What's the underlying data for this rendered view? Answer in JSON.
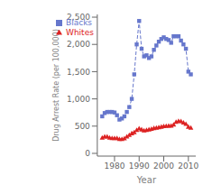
{
  "chart_data": {
    "type": "line",
    "x": [
      1975,
      1976,
      1977,
      1978,
      1979,
      1980,
      1981,
      1982,
      1983,
      1984,
      1985,
      1986,
      1987,
      1988,
      1989,
      1990,
      1991,
      1992,
      1993,
      1994,
      1995,
      1996,
      1997,
      1998,
      1999,
      2000,
      2001,
      2002,
      2003,
      2004,
      2005,
      2006,
      2007,
      2008,
      2009,
      2010,
      2011
    ],
    "series": [
      {
        "name": "Blacks",
        "color": "#6677cc",
        "marker": "square",
        "line_style": "dashed",
        "values": [
          680,
          740,
          760,
          760,
          760,
          750,
          700,
          620,
          640,
          680,
          760,
          850,
          1000,
          1450,
          2000,
          2430,
          1920,
          1780,
          1800,
          1750,
          1780,
          1900,
          1980,
          2050,
          2100,
          2130,
          2100,
          2080,
          2030,
          2150,
          2150,
          2150,
          2070,
          2000,
          1920,
          1500,
          1450
        ]
      },
      {
        "name": "Whites",
        "color": "#dd2222",
        "marker": "triangle",
        "line_style": "dashed",
        "values": [
          290,
          310,
          310,
          290,
          280,
          280,
          280,
          265,
          265,
          275,
          310,
          340,
          370,
          390,
          430,
          460,
          440,
          420,
          430,
          440,
          450,
          465,
          470,
          480,
          490,
          500,
          505,
          510,
          510,
          530,
          580,
          595,
          590,
          565,
          540,
          490,
          470
        ]
      }
    ],
    "xlabel": "Year",
    "ylabel": "Drug Arrest Rate (per 100,000)",
    "xlim": [
      1973,
      2013
    ],
    "ylim": [
      -50,
      2550
    ],
    "xticks": [
      1980,
      1990,
      2000,
      2010
    ],
    "yticks": [
      0,
      500,
      {
        "value": 1000,
        "label": "1,000"
      },
      {
        "value": 1500,
        "label": "1,500"
      },
      {
        "value": 2000,
        "label": "2,000"
      },
      {
        "value": 2500,
        "label": "2,500"
      }
    ],
    "grid": false,
    "legend": "upper left"
  }
}
